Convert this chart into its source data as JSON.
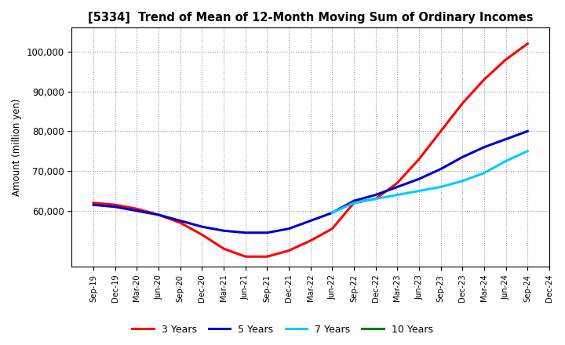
{
  "title": "[5334]  Trend of Mean of 12-Month Moving Sum of Ordinary Incomes",
  "ylabel": "Amount (million yen)",
  "ylim": [
    46000,
    106000
  ],
  "yticks": [
    60000,
    70000,
    80000,
    90000,
    100000
  ],
  "ytick_labels": [
    "60,000",
    "70,000",
    "80,000",
    "90,000",
    "100,000"
  ],
  "background_color": "#ffffff",
  "grid_color": "#999999",
  "x_labels": [
    "Sep-19",
    "Dec-19",
    "Mar-20",
    "Jun-20",
    "Sep-20",
    "Dec-20",
    "Mar-21",
    "Jun-21",
    "Sep-21",
    "Dec-21",
    "Mar-22",
    "Jun-22",
    "Sep-22",
    "Dec-22",
    "Mar-23",
    "Jun-23",
    "Sep-23",
    "Dec-23",
    "Mar-24",
    "Jun-24",
    "Sep-24",
    "Dec-24"
  ],
  "series": {
    "3 Years": {
      "color": "#ff0000",
      "values": [
        62000,
        61500,
        60500,
        59000,
        57000,
        54000,
        50500,
        48500,
        48500,
        50000,
        52500,
        55500,
        62000,
        63000,
        67000,
        73000,
        80000,
        87000,
        93000,
        98000,
        102000,
        null
      ]
    },
    "5 Years": {
      "color": "#0000cc",
      "values": [
        61500,
        61000,
        60000,
        59000,
        57500,
        56000,
        55000,
        54500,
        54500,
        55500,
        57500,
        59500,
        62500,
        64000,
        66000,
        68000,
        70500,
        73500,
        76000,
        78000,
        80000,
        null
      ]
    },
    "7 Years": {
      "color": "#00ccff",
      "values": [
        null,
        null,
        null,
        null,
        null,
        null,
        null,
        null,
        null,
        null,
        null,
        59500,
        62000,
        63000,
        64000,
        65000,
        66000,
        67500,
        69500,
        72500,
        75000,
        null
      ]
    },
    "10 Years": {
      "color": "#008000",
      "values": [
        null,
        null,
        null,
        null,
        null,
        null,
        null,
        null,
        null,
        null,
        null,
        null,
        null,
        null,
        null,
        null,
        null,
        null,
        null,
        null,
        null,
        null
      ]
    }
  },
  "legend_entries": [
    "3 Years",
    "5 Years",
    "7 Years",
    "10 Years"
  ],
  "legend_colors": [
    "#ff0000",
    "#0000cc",
    "#00ccff",
    "#008000"
  ]
}
